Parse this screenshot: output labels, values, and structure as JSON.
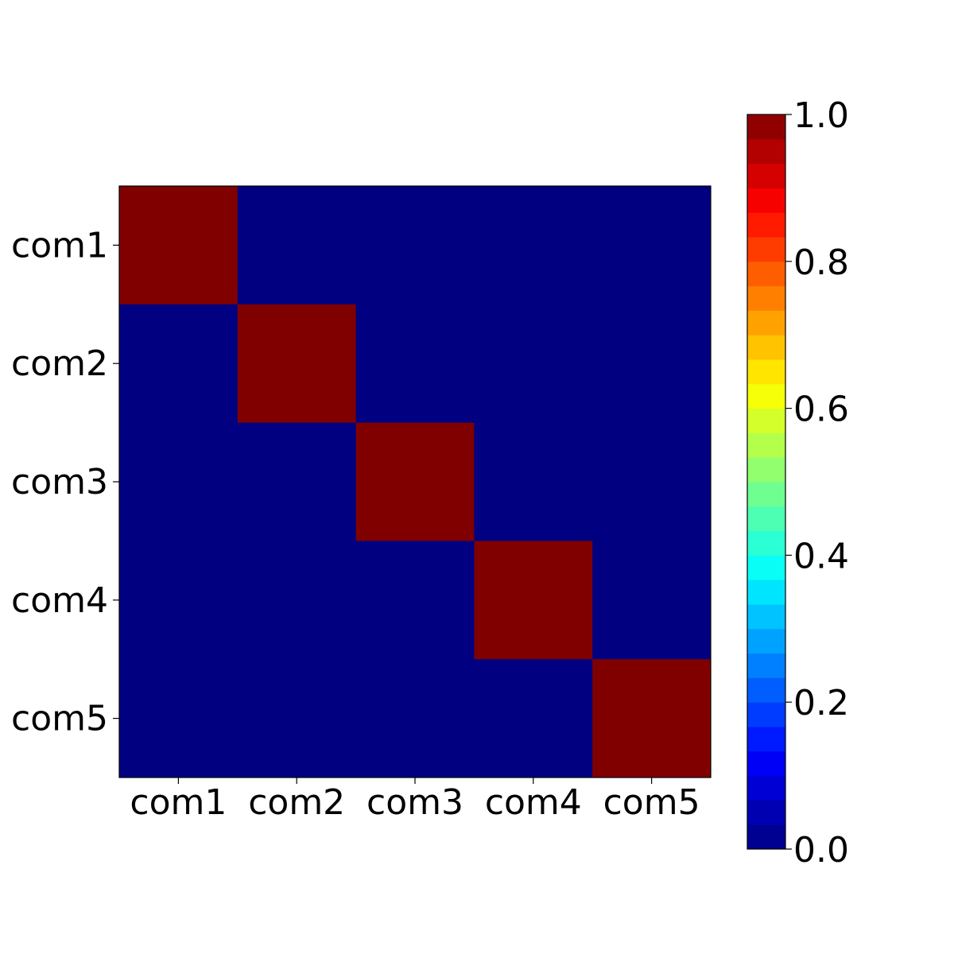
{
  "chart_data": {
    "type": "heatmap",
    "title": "",
    "xlabel": "",
    "ylabel": "",
    "x_categories": [
      "com1",
      "com2",
      "com3",
      "com4",
      "com5"
    ],
    "y_categories": [
      "com1",
      "com2",
      "com3",
      "com4",
      "com5"
    ],
    "values": [
      [
        1,
        0,
        0,
        0,
        0
      ],
      [
        0,
        1,
        0,
        0,
        0
      ],
      [
        0,
        0,
        1,
        0,
        0
      ],
      [
        0,
        0,
        0,
        1,
        0
      ],
      [
        0,
        0,
        0,
        0,
        1
      ]
    ],
    "colormap": "jet",
    "color_range": [
      0,
      1
    ],
    "colorbar_levels": 30,
    "colorbar_ticks": [
      "0.0",
      "0.2",
      "0.4",
      "0.6",
      "0.8",
      "1.0"
    ],
    "colorbar_tick_values": [
      0,
      0.2,
      0.4,
      0.6,
      0.8,
      1.0
    ],
    "grid": false
  }
}
